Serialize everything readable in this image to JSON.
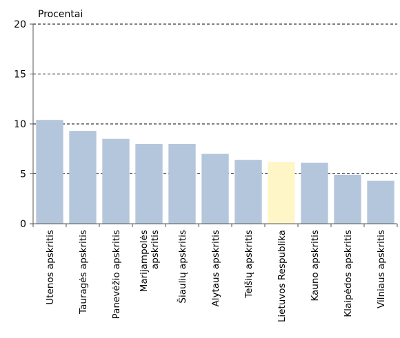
{
  "chart_data": {
    "type": "bar",
    "ylabel": "Procentai",
    "xlabel": "",
    "ylim": [
      0,
      20
    ],
    "yticks": [
      0,
      5,
      10,
      15,
      20
    ],
    "grid": "horizontal-dashed",
    "categories": [
      "Utenos apskritis",
      "Tauragės apskritis",
      "Panevėžio apskritis",
      "Marijampolės apskritis",
      "Šiaulių apskritis",
      "Alytaus apskritis",
      "Telšių apskritis",
      "Lietuvos Respublika",
      "Kauno apskritis",
      "Klaipėdos apskritis",
      "Vilniaus apskritis"
    ],
    "category_lines": [
      [
        "Utenos apskritis"
      ],
      [
        "Tauragės apskritis"
      ],
      [
        "Panevėžio apskritis"
      ],
      [
        "Marijampolės",
        "apskritis"
      ],
      [
        "Šiaulių apskritis"
      ],
      [
        "Alytaus apskritis"
      ],
      [
        "Telšių apskritis"
      ],
      [
        "Lietuvos Respublika"
      ],
      [
        "Kauno apskritis"
      ],
      [
        "Klaipėdos apskritis"
      ],
      [
        "Vilniaus apskritis"
      ]
    ],
    "values": [
      10.4,
      9.3,
      8.5,
      8.0,
      8.0,
      7.0,
      6.4,
      6.2,
      6.1,
      4.9,
      4.3
    ],
    "colors": {
      "bar": "#b4c6dc",
      "highlight": "#fff6c8",
      "highlight_category": "Lietuvos Respublika",
      "axis": "#555555",
      "grid": "#000000"
    }
  }
}
